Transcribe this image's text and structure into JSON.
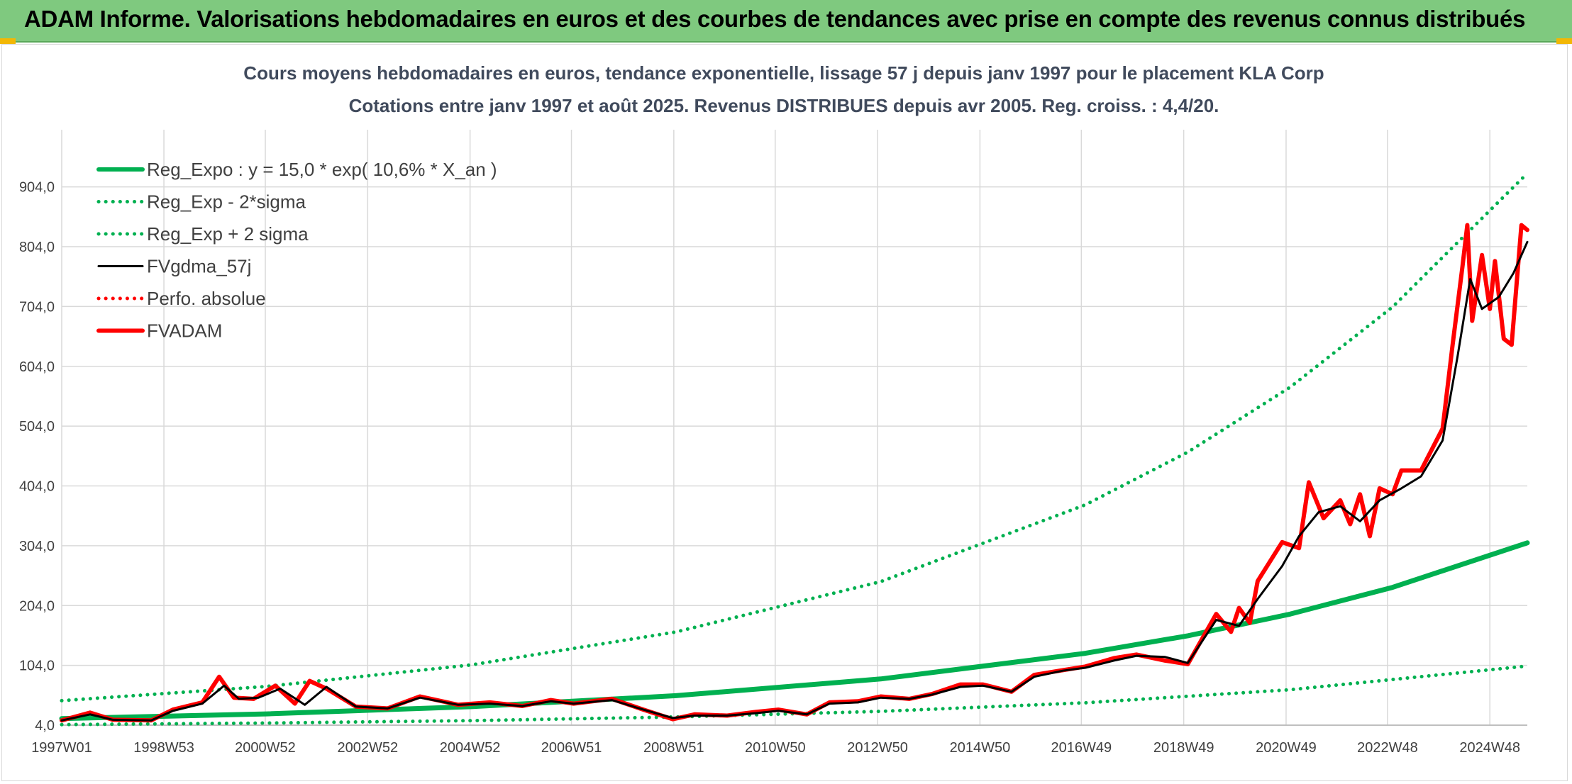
{
  "header": {
    "title": "ADAM Informe. Valorisations hebdomadaires en euros et des courbes de tendances avec prise en compte des revenus connus distribués"
  },
  "colors": {
    "header_bg": "#7fc97f",
    "reg_green": "#00b050",
    "fv_black": "#000000",
    "fv_red": "#ff0000",
    "grid": "#d9d9d9"
  },
  "chart_data": {
    "type": "line",
    "title": "Cours moyens hebdomadaires en euros, tendance exponentielle, lissage 57 j depuis janv 1997 pour le placement KLA Corp",
    "subtitle": "Cotations entre janv 1997 et août 2025. Revenus DISTRIBUES depuis avr 2005. Reg. croiss. : 4,4/20.",
    "xlabel": "",
    "ylabel": "",
    "x_ticks": [
      "1997W01",
      "1998W53",
      "2000W52",
      "2002W52",
      "2004W52",
      "2006W51",
      "2008W51",
      "2010W50",
      "2012W50",
      "2014W50",
      "2016W49",
      "2018W49",
      "2020W49",
      "2022W48",
      "2024W48"
    ],
    "y_ticks": [
      "4,0",
      "104,0",
      "204,0",
      "304,0",
      "404,0",
      "504,0",
      "604,0",
      "704,0",
      "804,0",
      "904,0"
    ],
    "xlim": [
      "1997W01",
      "2025W34"
    ],
    "ylim": [
      4,
      964
    ],
    "grid": true,
    "legend_position": "top-left",
    "regression": {
      "formula": "y = 15,0 * exp( 10,6% * X_an )",
      "a": 15.0,
      "rate": 0.106,
      "sigma_factor_lower": 0.33,
      "sigma_factor_upper": 3.0
    },
    "series": [
      {
        "name": "Reg_Expo : y = 15,0 * exp( 10,6% *  X_an )",
        "style": "solid-thick",
        "color": "#00b050",
        "x": [
          "1997W01",
          "2001W01",
          "2005W01",
          "2009W01",
          "2013W01",
          "2017W01",
          "2019W01",
          "2021W01",
          "2023W01",
          "2025W34"
        ],
        "values": [
          15.0,
          22.9,
          34.9,
          53.3,
          81.3,
          124.2,
          153.5,
          189.7,
          234.4,
          308.8
        ]
      },
      {
        "name": "Reg_Exp - 2*sigma",
        "style": "dotted",
        "color": "#00b050",
        "x": [
          "1997W01",
          "2001W01",
          "2005W01",
          "2009W01",
          "2013W01",
          "2017W01",
          "2021W01",
          "2025W34"
        ],
        "values": [
          5.0,
          7.6,
          11.6,
          17.8,
          27.1,
          41.4,
          63.2,
          102.9
        ]
      },
      {
        "name": "Reg_Exp + 2 sigma",
        "style": "dotted",
        "color": "#00b050",
        "x": [
          "1997W01",
          "2001W01",
          "2005W01",
          "2009W01",
          "2013W01",
          "2017W01",
          "2019W01",
          "2021W01",
          "2023W01",
          "2025W34"
        ],
        "values": [
          45.0,
          68.7,
          104.8,
          159.9,
          244.0,
          372.5,
          460.5,
          569.1,
          703.3,
          926.5
        ]
      },
      {
        "name": "FVgdma_57j",
        "style": "solid",
        "color": "#000000",
        "x": [
          "1997W01",
          "1997W30",
          "1998W01",
          "1998W40",
          "1999W10",
          "1999W40",
          "2000W10",
          "2000W25",
          "2000W45",
          "2001W15",
          "2001W40",
          "2002W10",
          "2002W40",
          "2003W20",
          "2004W01",
          "2004W40",
          "2005W20",
          "2006W01",
          "2006W30",
          "2007W01",
          "2007W40",
          "2008W20",
          "2008W50",
          "2009W20",
          "2010W01",
          "2010W30",
          "2011W01",
          "2011W30",
          "2012W01",
          "2012W30",
          "2013W01",
          "2013W30",
          "2014W01",
          "2014W30",
          "2015W01",
          "2015W30",
          "2016W01",
          "2016W30",
          "2017W01",
          "2017W30",
          "2018W01",
          "2018W30",
          "2019W01",
          "2019W30",
          "2020W01",
          "2020W20",
          "2020W45",
          "2021W10",
          "2021W30",
          "2021W52",
          "2022W20",
          "2022W40",
          "2023W10",
          "2023W30",
          "2023W52",
          "2024W15",
          "2024W28",
          "2024W40",
          "2025W05",
          "2025W20",
          "2025W34"
        ],
        "values": [
          12,
          22,
          13,
          12,
          28,
          40,
          70,
          48,
          50,
          65,
          38,
          68,
          35,
          32,
          50,
          38,
          40,
          36,
          44,
          40,
          46,
          30,
          16,
          20,
          20,
          24,
          28,
          22,
          40,
          42,
          50,
          48,
          55,
          68,
          70,
          60,
          85,
          95,
          100,
          112,
          120,
          118,
          108,
          180,
          170,
          215,
          270,
          320,
          360,
          370,
          345,
          380,
          400,
          420,
          480,
          620,
          750,
          700,
          720,
          760,
          812
        ]
      },
      {
        "name": "Perfo. absolue",
        "style": "dotted",
        "color": "#ff0000",
        "x": [],
        "values": []
      },
      {
        "name": "FVADAM",
        "style": "solid-thick",
        "color": "#ff0000",
        "x": [
          "1997W01",
          "1997W30",
          "1998W01",
          "1998W40",
          "1999W10",
          "1999W40",
          "2000W05",
          "2000W20",
          "2000W40",
          "2001W10",
          "2001W30",
          "2001W45",
          "2002W10",
          "2002W40",
          "2003W20",
          "2004W01",
          "2004W40",
          "2005W20",
          "2006W01",
          "2006W30",
          "2007W01",
          "2007W40",
          "2008W20",
          "2008W50",
          "2009W20",
          "2010W01",
          "2010W30",
          "2011W01",
          "2011W30",
          "2012W01",
          "2012W30",
          "2013W01",
          "2013W30",
          "2014W01",
          "2014W30",
          "2015W01",
          "2015W30",
          "2016W01",
          "2016W30",
          "2017W01",
          "2017W30",
          "2018W01",
          "2018W30",
          "2019W01",
          "2019W30",
          "2019W45",
          "2020W01",
          "2020W12",
          "2020W20",
          "2020W45",
          "2021W10",
          "2021W20",
          "2021W35",
          "2021W52",
          "2022W10",
          "2022W20",
          "2022W30",
          "2022W40",
          "2023W01",
          "2023W10",
          "2023W30",
          "2023W52",
          "2024W10",
          "2024W20",
          "2024W25",
          "2024W30",
          "2024W40",
          "2024W48",
          "2025W01",
          "2025W10",
          "2025W18",
          "2025W22",
          "2025W28",
          "2025W34"
        ],
        "values": [
          12,
          25,
          13,
          12,
          30,
          42,
          85,
          50,
          48,
          70,
          40,
          78,
          65,
          35,
          32,
          52,
          38,
          42,
          36,
          46,
          40,
          48,
          30,
          14,
          22,
          20,
          26,
          30,
          22,
          42,
          44,
          52,
          48,
          56,
          72,
          72,
          60,
          88,
          96,
          102,
          116,
          122,
          112,
          106,
          190,
          160,
          200,
          175,
          245,
          310,
          300,
          410,
          350,
          380,
          340,
          390,
          320,
          400,
          390,
          430,
          430,
          500,
          640,
          770,
          840,
          680,
          790,
          700,
          780,
          650,
          640,
          720,
          840,
          832
        ]
      }
    ]
  }
}
